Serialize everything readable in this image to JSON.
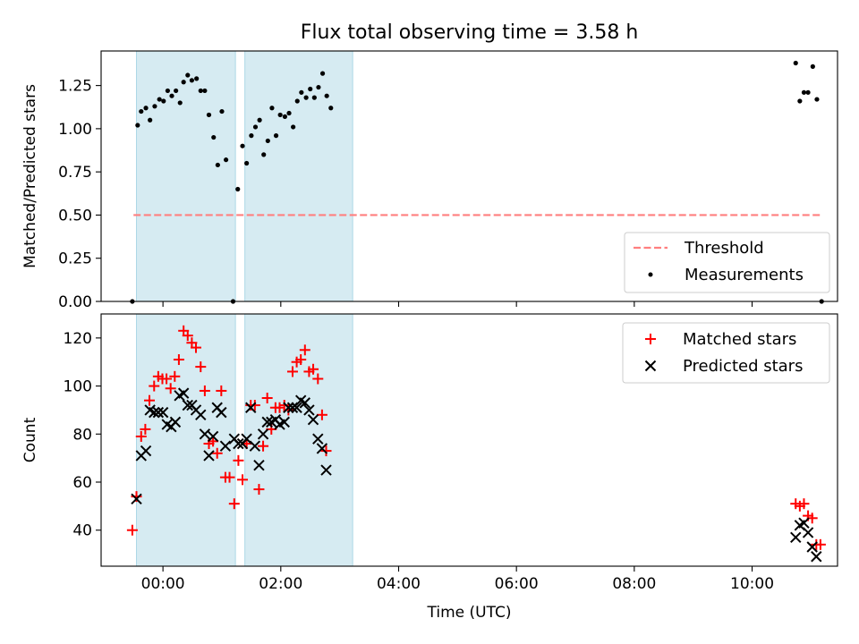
{
  "chart_data": [
    {
      "type": "scatter",
      "title": "Flux total observing time = 3.58 h",
      "ylabel": "Matched/Predicted stars",
      "xlabel": "",
      "x_unit": "hours (UTC, relative to 00:00)",
      "xlim": [
        -1.05,
        11.45
      ],
      "ylim": [
        0,
        1.45
      ],
      "y_ticks": [
        0.0,
        0.25,
        0.5,
        0.75,
        1.0,
        1.25
      ],
      "y_tick_labels": [
        "0.00",
        "0.25",
        "0.50",
        "0.75",
        "1.00",
        "1.25"
      ],
      "shaded_intervals": [
        [
          -0.45,
          1.23
        ],
        [
          1.39,
          3.22
        ]
      ],
      "shade_color": "#add8e6",
      "legend_position": "lower right",
      "threshold": {
        "name": "Threshold",
        "y": 0.5,
        "x_range": [
          -0.5,
          11.2
        ],
        "color": "#ff7f7f",
        "style": "dashed"
      },
      "series": [
        {
          "name": "Measurements",
          "color": "#000000",
          "marker": "dot",
          "points": [
            [
              -0.52,
              0.0
            ],
            [
              -0.43,
              1.02
            ],
            [
              -0.37,
              1.1
            ],
            [
              -0.29,
              1.12
            ],
            [
              -0.22,
              1.05
            ],
            [
              -0.14,
              1.13
            ],
            [
              -0.06,
              1.17
            ],
            [
              0.01,
              1.16
            ],
            [
              0.08,
              1.22
            ],
            [
              0.15,
              1.19
            ],
            [
              0.22,
              1.22
            ],
            [
              0.29,
              1.15
            ],
            [
              0.35,
              1.27
            ],
            [
              0.42,
              1.31
            ],
            [
              0.49,
              1.28
            ],
            [
              0.57,
              1.29
            ],
            [
              0.64,
              1.22
            ],
            [
              0.71,
              1.22
            ],
            [
              0.78,
              1.08
            ],
            [
              0.86,
              0.95
            ],
            [
              0.93,
              0.79
            ],
            [
              1.0,
              1.1
            ],
            [
              1.07,
              0.82
            ],
            [
              1.19,
              0.0
            ],
            [
              1.27,
              0.65
            ],
            [
              1.35,
              0.9
            ],
            [
              1.42,
              0.8
            ],
            [
              1.5,
              0.96
            ],
            [
              1.57,
              1.01
            ],
            [
              1.64,
              1.05
            ],
            [
              1.71,
              0.85
            ],
            [
              1.78,
              0.93
            ],
            [
              1.85,
              1.12
            ],
            [
              1.92,
              0.96
            ],
            [
              1.99,
              1.08
            ],
            [
              2.07,
              1.07
            ],
            [
              2.14,
              1.09
            ],
            [
              2.21,
              1.01
            ],
            [
              2.28,
              1.16
            ],
            [
              2.35,
              1.21
            ],
            [
              2.43,
              1.18
            ],
            [
              2.5,
              1.23
            ],
            [
              2.57,
              1.18
            ],
            [
              2.64,
              1.24
            ],
            [
              2.71,
              1.32
            ],
            [
              2.78,
              1.19
            ],
            [
              2.85,
              1.12
            ],
            [
              10.74,
              1.38
            ],
            [
              10.81,
              1.16
            ],
            [
              10.88,
              1.21
            ],
            [
              10.95,
              1.21
            ],
            [
              11.03,
              1.36
            ],
            [
              11.1,
              1.17
            ],
            [
              11.18,
              0.0
            ]
          ]
        }
      ]
    },
    {
      "type": "scatter",
      "title": "",
      "ylabel": "Count",
      "xlabel": "Time (UTC)",
      "x_unit": "hours (UTC, relative to 00:00)",
      "xlim": [
        -1.05,
        11.45
      ],
      "ylim": [
        25,
        130
      ],
      "y_ticks": [
        40,
        60,
        80,
        100,
        120
      ],
      "y_tick_labels": [
        "40",
        "60",
        "80",
        "100",
        "120"
      ],
      "x_ticks": [
        0,
        2,
        4,
        6,
        8,
        10
      ],
      "x_tick_labels": [
        "00:00",
        "02:00",
        "04:00",
        "06:00",
        "08:00",
        "10:00"
      ],
      "shaded_intervals": [
        [
          -0.45,
          1.23
        ],
        [
          1.39,
          3.22
        ]
      ],
      "shade_color": "#add8e6",
      "legend_position": "upper right",
      "series": [
        {
          "name": "Matched stars",
          "color": "#ff0000",
          "marker": "plus",
          "points": [
            [
              -0.52,
              40
            ],
            [
              -0.45,
              54
            ],
            [
              -0.37,
              79
            ],
            [
              -0.3,
              82
            ],
            [
              -0.23,
              94
            ],
            [
              -0.15,
              100
            ],
            [
              -0.08,
              104
            ],
            [
              -0.01,
              103
            ],
            [
              0.06,
              103
            ],
            [
              0.13,
              99
            ],
            [
              0.2,
              104
            ],
            [
              0.27,
              111
            ],
            [
              0.35,
              123
            ],
            [
              0.42,
              121
            ],
            [
              0.49,
              118
            ],
            [
              0.56,
              116
            ],
            [
              0.64,
              108
            ],
            [
              0.71,
              98
            ],
            [
              0.78,
              76
            ],
            [
              0.85,
              77
            ],
            [
              0.92,
              72
            ],
            [
              0.99,
              98
            ],
            [
              1.06,
              62
            ],
            [
              1.13,
              62
            ],
            [
              1.21,
              51
            ],
            [
              1.28,
              69
            ],
            [
              1.35,
              61
            ],
            [
              1.42,
              76
            ],
            [
              1.49,
              92
            ],
            [
              1.56,
              92
            ],
            [
              1.63,
              57
            ],
            [
              1.7,
              75
            ],
            [
              1.77,
              95
            ],
            [
              1.84,
              82
            ],
            [
              1.91,
              91
            ],
            [
              1.98,
              91
            ],
            [
              2.06,
              92
            ],
            [
              2.13,
              90
            ],
            [
              2.2,
              106
            ],
            [
              2.27,
              110
            ],
            [
              2.34,
              111
            ],
            [
              2.41,
              115
            ],
            [
              2.48,
              106
            ],
            [
              2.55,
              107
            ],
            [
              2.63,
              103
            ],
            [
              2.7,
              88
            ],
            [
              2.77,
              73
            ],
            [
              10.74,
              51
            ],
            [
              10.81,
              50
            ],
            [
              10.88,
              51
            ],
            [
              10.95,
              46
            ],
            [
              11.02,
              45
            ],
            [
              11.09,
              34
            ],
            [
              11.16,
              34
            ]
          ]
        },
        {
          "name": "Predicted stars",
          "color": "#000000",
          "marker": "x",
          "points": [
            [
              -0.45,
              53
            ],
            [
              -0.37,
              71
            ],
            [
              -0.29,
              73
            ],
            [
              -0.22,
              90
            ],
            [
              -0.15,
              89
            ],
            [
              -0.08,
              89
            ],
            [
              0.0,
              89
            ],
            [
              0.07,
              84
            ],
            [
              0.14,
              83
            ],
            [
              0.21,
              85
            ],
            [
              0.28,
              96
            ],
            [
              0.35,
              97
            ],
            [
              0.42,
              92
            ],
            [
              0.49,
              92
            ],
            [
              0.56,
              90
            ],
            [
              0.64,
              88
            ],
            [
              0.71,
              80
            ],
            [
              0.78,
              71
            ],
            [
              0.85,
              79
            ],
            [
              0.92,
              91
            ],
            [
              0.99,
              89
            ],
            [
              1.06,
              75
            ],
            [
              1.21,
              78
            ],
            [
              1.28,
              76
            ],
            [
              1.35,
              76
            ],
            [
              1.42,
              78
            ],
            [
              1.49,
              91
            ],
            [
              1.56,
              75
            ],
            [
              1.63,
              67
            ],
            [
              1.7,
              80
            ],
            [
              1.77,
              85
            ],
            [
              1.84,
              85
            ],
            [
              1.91,
              86
            ],
            [
              1.98,
              84
            ],
            [
              2.06,
              85
            ],
            [
              2.13,
              91
            ],
            [
              2.2,
              91
            ],
            [
              2.27,
              91
            ],
            [
              2.34,
              94
            ],
            [
              2.41,
              93
            ],
            [
              2.48,
              90
            ],
            [
              2.55,
              86
            ],
            [
              2.63,
              78
            ],
            [
              2.7,
              74
            ],
            [
              2.77,
              65
            ],
            [
              10.74,
              37
            ],
            [
              10.81,
              42
            ],
            [
              10.88,
              43
            ],
            [
              10.95,
              39
            ],
            [
              11.02,
              33
            ],
            [
              11.09,
              29
            ]
          ]
        }
      ]
    }
  ]
}
